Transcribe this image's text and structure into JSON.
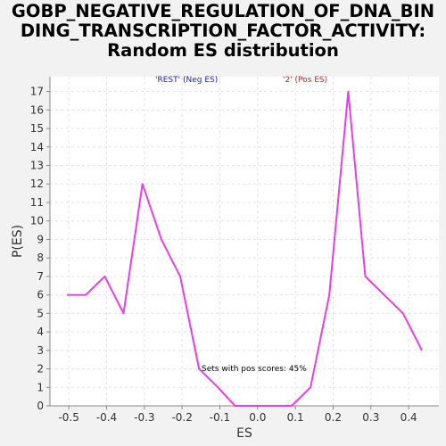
{
  "chart_data": {
    "type": "line",
    "title_lines": [
      "GOBP_NEGATIVE_REGULATION_OF_DNA_BIN",
      "DING_TRANSCRIPTION_FACTOR_ACTIVITY:",
      "Random ES distribution"
    ],
    "xlabel": "ES",
    "ylabel": "P(ES)",
    "xlim": [
      -0.55,
      0.48
    ],
    "ylim": [
      0,
      17.8
    ],
    "xticks": [
      -0.5,
      -0.4,
      -0.3,
      -0.2,
      -0.1,
      0.0,
      0.1,
      0.2,
      0.3,
      0.4
    ],
    "xtick_labels": [
      "-0.5",
      "-0.4",
      "-0.3",
      "-0.2",
      "-0.1",
      "0.0",
      "0.1",
      "0.2",
      "0.3",
      "0.4"
    ],
    "yticks": [
      0,
      1,
      2,
      3,
      4,
      5,
      6,
      7,
      8,
      9,
      10,
      11,
      12,
      13,
      14,
      15,
      16,
      17
    ],
    "grid": true,
    "series": [
      {
        "color": "#e83ee8",
        "x": [
          -0.505,
          -0.455,
          -0.405,
          -0.355,
          -0.305,
          -0.255,
          -0.205,
          -0.155,
          -0.105,
          -0.06,
          -0.01,
          0.09,
          0.14,
          0.19,
          0.24,
          0.285,
          0.385,
          0.435
        ],
        "y": [
          6,
          6,
          7,
          5,
          12,
          9,
          7,
          2,
          1,
          0,
          0,
          0,
          1,
          6,
          17,
          7,
          5,
          3
        ]
      }
    ],
    "legend": [
      {
        "label": "'REST' (Neg ES)",
        "color": "#2020c0"
      },
      {
        "label": "'2' (Pos ES)",
        "color": "#d02020"
      }
    ],
    "annotation": "Sets with pos scores: 45%"
  }
}
